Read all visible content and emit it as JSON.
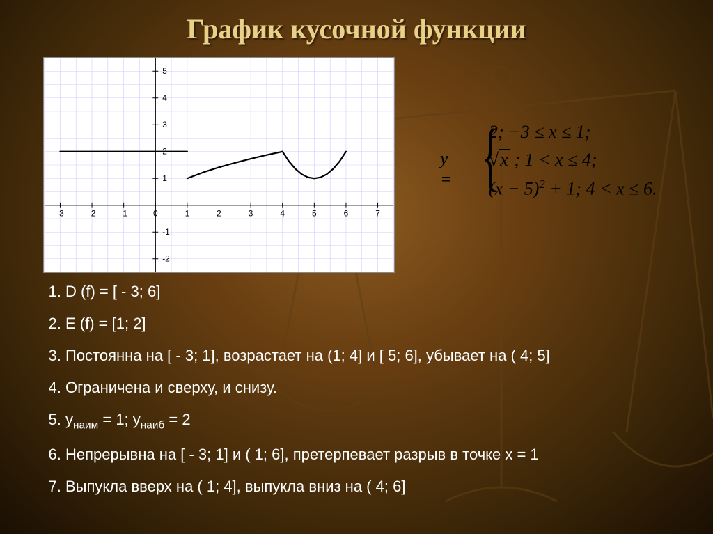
{
  "title": "График кусочной функции",
  "chart": {
    "type": "line",
    "background_color": "#ffffff",
    "grid_color": "#d9c8ff",
    "axis_color": "#000000",
    "plot_color": "#000000",
    "plot_width": 2.2,
    "xlim": [
      -3.5,
      7.5
    ],
    "ylim": [
      -2.5,
      5.5
    ],
    "xtick_labels": [
      "-3",
      "-2",
      "-1",
      "0",
      "1",
      "2",
      "3",
      "4",
      "5",
      "6",
      "7"
    ],
    "xtick_values": [
      -3,
      -2,
      -1,
      0,
      1,
      2,
      3,
      4,
      5,
      6,
      7
    ],
    "ytick_labels": [
      "-2",
      "-1",
      "1",
      "2",
      "3",
      "4",
      "5"
    ],
    "ytick_values": [
      -2,
      -1,
      1,
      2,
      3,
      4,
      5
    ],
    "tick_fontsize": 12,
    "segments": [
      {
        "piece": "constant",
        "points": [
          [
            -3,
            2
          ],
          [
            1,
            2
          ]
        ]
      },
      {
        "piece": "sqrt",
        "points": [
          [
            1,
            1
          ],
          [
            1.5,
            1.225
          ],
          [
            2,
            1.414
          ],
          [
            2.5,
            1.581
          ],
          [
            3,
            1.732
          ],
          [
            3.5,
            1.871
          ],
          [
            4,
            2
          ]
        ]
      },
      {
        "piece": "parabola",
        "points": [
          [
            4,
            2
          ],
          [
            4.2,
            1.64
          ],
          [
            4.4,
            1.36
          ],
          [
            4.6,
            1.16
          ],
          [
            4.8,
            1.04
          ],
          [
            5,
            1
          ],
          [
            5.2,
            1.04
          ],
          [
            5.4,
            1.16
          ],
          [
            5.6,
            1.36
          ],
          [
            5.8,
            1.64
          ],
          [
            6,
            2
          ]
        ]
      }
    ]
  },
  "formula": {
    "lhs": "y =",
    "rows": [
      "2; −3 ≤ x ≤ 1;",
      "√x ; 1 < x ≤ 4;",
      "(x − 5)² + 1; 4 < x ≤ 6."
    ]
  },
  "properties": [
    "D (f) = [ - 3; 6]",
    "E (f) = [1; 2]",
    "Постоянна на [ - 3; 1], возрастает на (1; 4] и [ 5; 6], убывает на ( 4; 5]",
    "Ограничена и сверху, и снизу.",
    "yнаим = 1; yнаиб = 2",
    "Непрерывна на [ - 3; 1] и ( 1; 6], претерпевает разрыв в точке x = 1",
    "Выпукла вверх на ( 1; 4], выпукла вниз на ( 4; 6]"
  ],
  "colors": {
    "title": "#e8d088",
    "text": "#ffffff",
    "bg_inner": "#8b5a1f",
    "bg_outer": "#1a0f03",
    "scales_stroke": "#6b4a1e"
  }
}
